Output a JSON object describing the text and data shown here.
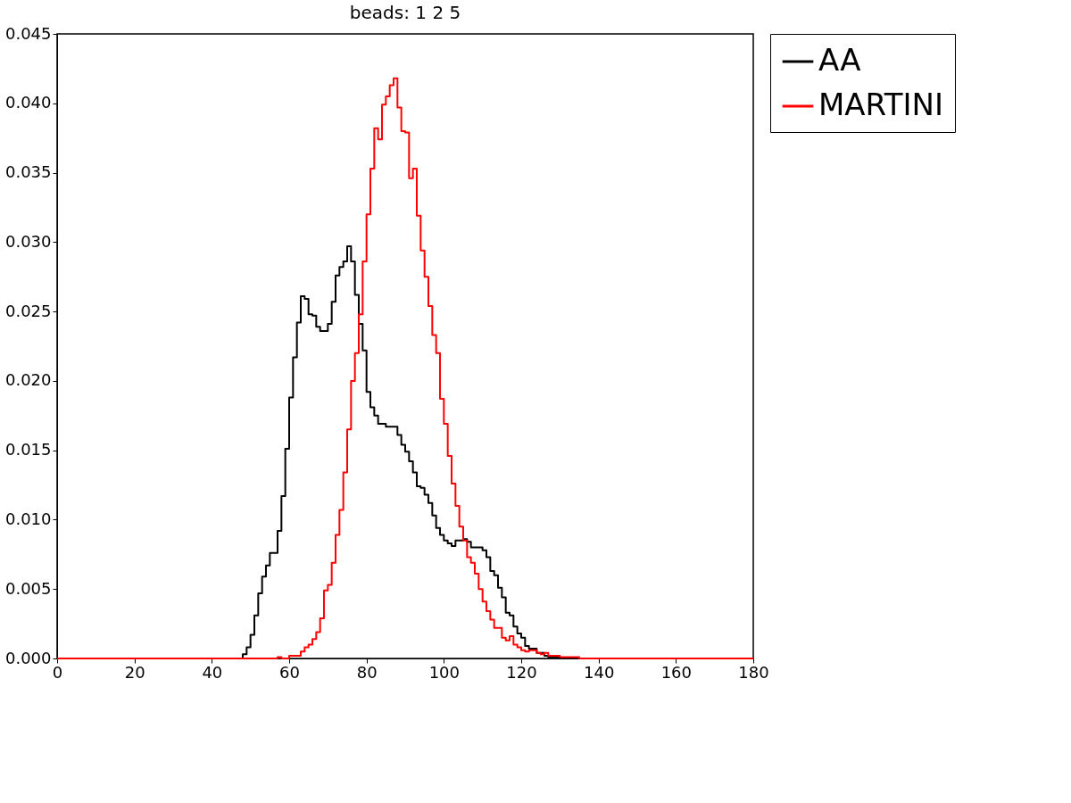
{
  "chart_data": {
    "type": "step",
    "title": "beads: 1 2 5",
    "xlim": [
      0,
      180
    ],
    "xticks": [
      0,
      20,
      40,
      60,
      80,
      100,
      120,
      140,
      160,
      180
    ],
    "ylim": [
      0,
      0.045
    ],
    "yticks": [
      {
        "value": 0,
        "label": "0.000"
      },
      {
        "value": 0.005,
        "label": "0.005"
      },
      {
        "value": 0.01,
        "label": "0.010"
      },
      {
        "value": 0.015,
        "label": "0.015"
      },
      {
        "value": 0.02,
        "label": "0.020"
      },
      {
        "value": 0.025,
        "label": "0.025"
      },
      {
        "value": 0.03,
        "label": "0.030"
      },
      {
        "value": 0.035,
        "label": "0.035"
      },
      {
        "value": 0.04,
        "label": "0.040"
      },
      {
        "value": 0.045,
        "label": "0.045"
      }
    ],
    "grid": false,
    "legend": "top right",
    "line_style": "solid",
    "marker": "none",
    "series": [
      {
        "name": "AA",
        "color": "#000000",
        "x": [
          0,
          48,
          49,
          50,
          51,
          52,
          53,
          54,
          55,
          56,
          57,
          58,
          59,
          60,
          61,
          62,
          63,
          64,
          65,
          66,
          67,
          68,
          69,
          70,
          71,
          72,
          73,
          74,
          75,
          76,
          77,
          78,
          79,
          80,
          81,
          82,
          83,
          84,
          85,
          86,
          87,
          88,
          89,
          90,
          91,
          92,
          93,
          94,
          95,
          96,
          97,
          98,
          99,
          100,
          101,
          102,
          103,
          104,
          105,
          106,
          107,
          108,
          109,
          110,
          111,
          112,
          113,
          114,
          115,
          116,
          117,
          118,
          119,
          120,
          121,
          122,
          123,
          124,
          125,
          126,
          127,
          128,
          129,
          130,
          180
        ],
        "values": [
          0,
          0.0003,
          0.0008,
          0.0017,
          0.0031,
          0.0047,
          0.0059,
          0.0067,
          0.0076,
          0.0076,
          0.0092,
          0.0117,
          0.0151,
          0.0188,
          0.0217,
          0.0242,
          0.0261,
          0.0259,
          0.0248,
          0.0247,
          0.0239,
          0.0236,
          0.0236,
          0.0241,
          0.0257,
          0.0276,
          0.0282,
          0.0286,
          0.0297,
          0.0286,
          0.0262,
          0.0241,
          0.0222,
          0.0192,
          0.0181,
          0.0175,
          0.0169,
          0.0169,
          0.0167,
          0.0167,
          0.0167,
          0.0161,
          0.0154,
          0.0149,
          0.0142,
          0.0134,
          0.0124,
          0.0123,
          0.0118,
          0.0112,
          0.0103,
          0.0094,
          0.0089,
          0.0085,
          0.0083,
          0.0081,
          0.0085,
          0.0085,
          0.0086,
          0.0084,
          0.008,
          0.008,
          0.008,
          0.0078,
          0.0073,
          0.0063,
          0.006,
          0.0051,
          0.0044,
          0.0033,
          0.0031,
          0.0023,
          0.0018,
          0.0015,
          0.0009,
          0.0007,
          0.0007,
          0.0004,
          0.0004,
          0.0002,
          0.0001,
          0.0001,
          0.0001,
          0,
          0
        ]
      },
      {
        "name": "MARTINI",
        "color": "#ff0000",
        "x": [
          0,
          57,
          58,
          60,
          62,
          63,
          64,
          65,
          66,
          67,
          68,
          69,
          70,
          71,
          72,
          73,
          74,
          75,
          76,
          77,
          78,
          79,
          80,
          81,
          82,
          83,
          84,
          85,
          86,
          87,
          88,
          89,
          90,
          91,
          92,
          93,
          94,
          95,
          96,
          97,
          98,
          99,
          100,
          101,
          102,
          103,
          104,
          105,
          106,
          107,
          108,
          109,
          110,
          111,
          112,
          113,
          114,
          115,
          116,
          117,
          118,
          119,
          120,
          121,
          122,
          123,
          124,
          125,
          126,
          127,
          130,
          135,
          180
        ],
        "values": [
          0,
          0.0001,
          0,
          0.0002,
          0.0002,
          0.0005,
          0.0008,
          0.001,
          0.0014,
          0.0019,
          0.0029,
          0.0049,
          0.0053,
          0.0069,
          0.0089,
          0.0107,
          0.0134,
          0.0165,
          0.02,
          0.022,
          0.0248,
          0.0286,
          0.032,
          0.0353,
          0.0382,
          0.0374,
          0.0399,
          0.0405,
          0.0413,
          0.0418,
          0.0397,
          0.038,
          0.0379,
          0.0346,
          0.0353,
          0.0319,
          0.0294,
          0.0275,
          0.0254,
          0.0233,
          0.022,
          0.0187,
          0.0169,
          0.0146,
          0.0126,
          0.011,
          0.0095,
          0.0085,
          0.0073,
          0.0069,
          0.0061,
          0.005,
          0.0041,
          0.0034,
          0.0028,
          0.0022,
          0.0022,
          0.0015,
          0.0013,
          0.0016,
          0.001,
          0.0008,
          0.0006,
          0.0005,
          0.0006,
          0.0006,
          0.0004,
          0.0003,
          0.0004,
          0.0002,
          0.0001,
          0,
          0
        ]
      }
    ]
  }
}
